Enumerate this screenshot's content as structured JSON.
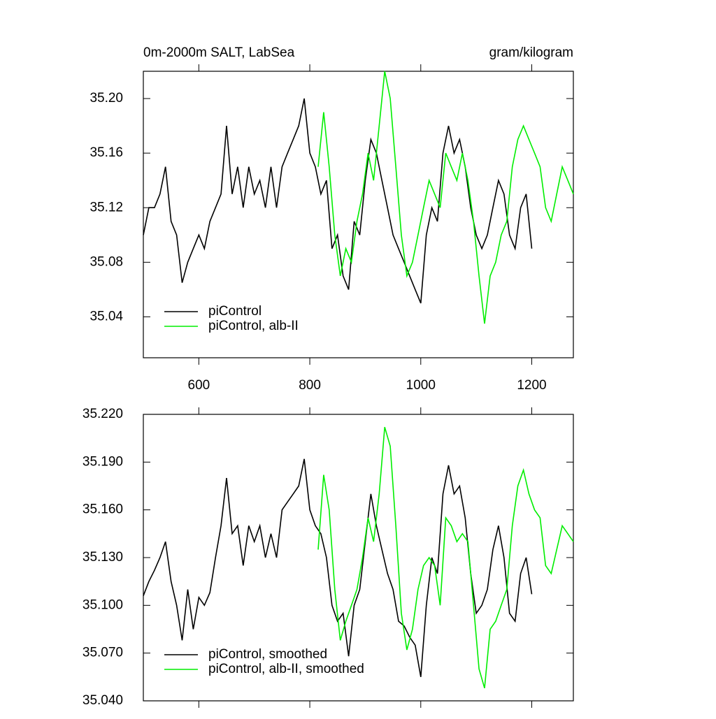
{
  "chart_data": [
    {
      "type": "line",
      "title": "0m-2000m SALT, LabSea",
      "unit_label": "gram/kilogram",
      "xlim": [
        500,
        1275
      ],
      "xticks": [
        600,
        800,
        1000,
        1200
      ],
      "ylim": [
        35.01,
        35.22
      ],
      "yticks": [
        {
          "value": 35.04,
          "label": "35.04"
        },
        {
          "value": 35.08,
          "label": "35.08"
        },
        {
          "value": 35.12,
          "label": "35.12"
        },
        {
          "value": 35.16,
          "label": "35.16"
        },
        {
          "value": 35.2,
          "label": "35.20"
        }
      ],
      "legend": "lower left",
      "series": [
        {
          "name": "piControl",
          "color": "#000000",
          "x": [
            500,
            510,
            520,
            530,
            540,
            550,
            560,
            570,
            580,
            590,
            600,
            610,
            620,
            630,
            640,
            650,
            660,
            670,
            680,
            690,
            700,
            710,
            720,
            730,
            740,
            750,
            760,
            770,
            780,
            790,
            800,
            810,
            820,
            830,
            840,
            850,
            860,
            870,
            880,
            890,
            900,
            910,
            920,
            930,
            940,
            950,
            960,
            970,
            980,
            990,
            1000,
            1010,
            1020,
            1030,
            1040,
            1050,
            1060,
            1070,
            1080,
            1090,
            1100,
            1110,
            1120,
            1130,
            1140,
            1150,
            1160,
            1170,
            1180,
            1190,
            1200
          ],
          "values": [
            35.1,
            35.12,
            35.12,
            35.13,
            35.15,
            35.11,
            35.1,
            35.065,
            35.08,
            35.09,
            35.1,
            35.09,
            35.11,
            35.12,
            35.13,
            35.18,
            35.13,
            35.15,
            35.12,
            35.15,
            35.13,
            35.14,
            35.12,
            35.15,
            35.12,
            35.15,
            35.16,
            35.17,
            35.18,
            35.2,
            35.16,
            35.15,
            35.13,
            35.14,
            35.09,
            35.1,
            35.07,
            35.06,
            35.11,
            35.1,
            35.14,
            35.17,
            35.16,
            35.14,
            35.12,
            35.1,
            35.09,
            35.08,
            35.07,
            35.06,
            35.05,
            35.1,
            35.12,
            35.11,
            35.16,
            35.18,
            35.16,
            35.17,
            35.15,
            35.12,
            35.1,
            35.09,
            35.1,
            35.12,
            35.14,
            35.13,
            35.1,
            35.09,
            35.12,
            35.13,
            35.09
          ]
        },
        {
          "name": "piControl, alb-II",
          "color": "#00ee00",
          "x": [
            815,
            825,
            835,
            845,
            855,
            865,
            875,
            885,
            895,
            905,
            915,
            925,
            935,
            945,
            955,
            965,
            975,
            985,
            995,
            1005,
            1015,
            1025,
            1035,
            1045,
            1055,
            1065,
            1075,
            1085,
            1095,
            1105,
            1115,
            1125,
            1135,
            1145,
            1155,
            1165,
            1175,
            1185,
            1195,
            1205,
            1215,
            1225,
            1235,
            1245,
            1255,
            1265,
            1275
          ],
          "values": [
            35.15,
            35.19,
            35.15,
            35.1,
            35.07,
            35.09,
            35.08,
            35.11,
            35.13,
            35.16,
            35.14,
            35.18,
            35.22,
            35.2,
            35.15,
            35.1,
            35.07,
            35.08,
            35.1,
            35.12,
            35.14,
            35.13,
            35.12,
            35.16,
            35.15,
            35.14,
            35.16,
            35.14,
            35.11,
            35.07,
            35.035,
            35.07,
            35.08,
            35.1,
            35.11,
            35.15,
            35.17,
            35.18,
            35.17,
            35.16,
            35.15,
            35.12,
            35.11,
            35.13,
            35.15,
            35.14,
            35.13
          ]
        }
      ]
    },
    {
      "type": "line",
      "xlim": [
        500,
        1275
      ],
      "xticks": [
        600,
        800,
        1000,
        1200
      ],
      "ylim": [
        35.04,
        35.22
      ],
      "yticks": [
        {
          "value": 35.04,
          "label": "35.040"
        },
        {
          "value": 35.07,
          "label": "35.070"
        },
        {
          "value": 35.1,
          "label": "35.100"
        },
        {
          "value": 35.13,
          "label": "35.130"
        },
        {
          "value": 35.16,
          "label": "35.160"
        },
        {
          "value": 35.19,
          "label": "35.190"
        },
        {
          "value": 35.22,
          "label": "35.220"
        }
      ],
      "legend": "lower left",
      "series": [
        {
          "name": "piControl, smoothed",
          "color": "#000000",
          "x": [
            500,
            510,
            520,
            530,
            540,
            550,
            560,
            570,
            580,
            590,
            600,
            610,
            620,
            630,
            640,
            650,
            660,
            670,
            680,
            690,
            700,
            710,
            720,
            730,
            740,
            750,
            760,
            770,
            780,
            790,
            800,
            810,
            820,
            830,
            840,
            850,
            860,
            870,
            880,
            890,
            900,
            910,
            920,
            930,
            940,
            950,
            960,
            970,
            980,
            990,
            1000,
            1010,
            1020,
            1030,
            1040,
            1050,
            1060,
            1070,
            1080,
            1090,
            1100,
            1110,
            1120,
            1130,
            1140,
            1150,
            1160,
            1170,
            1180,
            1190,
            1200
          ],
          "values": [
            35.106,
            35.115,
            35.122,
            35.13,
            35.14,
            35.115,
            35.1,
            35.078,
            35.11,
            35.085,
            35.105,
            35.1,
            35.108,
            35.13,
            35.15,
            35.18,
            35.145,
            35.15,
            35.125,
            35.15,
            35.14,
            35.15,
            35.13,
            35.145,
            35.13,
            35.16,
            35.165,
            35.17,
            35.175,
            35.192,
            35.16,
            35.15,
            35.145,
            35.13,
            35.1,
            35.09,
            35.095,
            35.068,
            35.1,
            35.11,
            35.14,
            35.17,
            35.15,
            35.135,
            35.12,
            35.11,
            35.09,
            35.087,
            35.08,
            35.075,
            35.055,
            35.1,
            35.13,
            35.12,
            35.17,
            35.188,
            35.17,
            35.175,
            35.155,
            35.12,
            35.095,
            35.1,
            35.11,
            35.135,
            35.15,
            35.13,
            35.095,
            35.09,
            35.12,
            35.13,
            35.107
          ]
        },
        {
          "name": "piControl, alb-II, smoothed",
          "color": "#00ee00",
          "x": [
            815,
            825,
            835,
            845,
            855,
            865,
            875,
            885,
            895,
            905,
            915,
            925,
            935,
            945,
            955,
            965,
            975,
            985,
            995,
            1005,
            1015,
            1025,
            1035,
            1045,
            1055,
            1065,
            1075,
            1085,
            1095,
            1105,
            1115,
            1125,
            1135,
            1145,
            1155,
            1165,
            1175,
            1185,
            1195,
            1205,
            1215,
            1225,
            1235,
            1245,
            1255,
            1265,
            1275
          ],
          "values": [
            35.135,
            35.182,
            35.16,
            35.11,
            35.078,
            35.09,
            35.1,
            35.11,
            35.13,
            35.155,
            35.14,
            35.17,
            35.212,
            35.2,
            35.15,
            35.095,
            35.072,
            35.085,
            35.11,
            35.125,
            35.13,
            35.125,
            35.1,
            35.155,
            35.15,
            35.14,
            35.145,
            35.14,
            35.1,
            35.06,
            35.048,
            35.085,
            35.09,
            35.1,
            35.11,
            35.15,
            35.175,
            35.185,
            35.17,
            35.16,
            35.155,
            35.125,
            35.12,
            35.135,
            35.15,
            35.145,
            35.14
          ]
        }
      ]
    }
  ]
}
